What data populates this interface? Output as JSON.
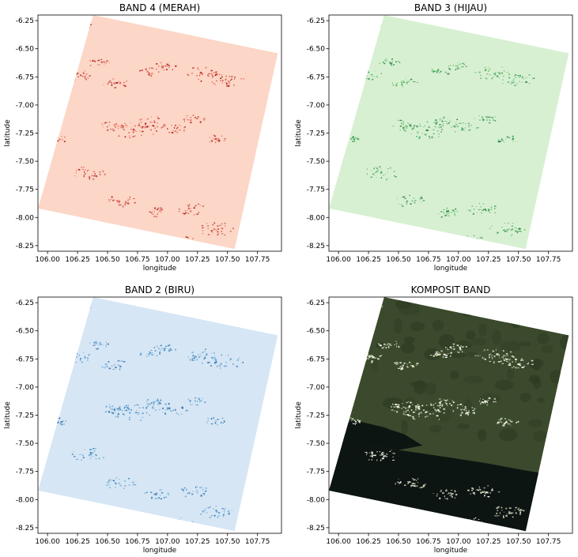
{
  "panels": [
    {
      "title": "BAND 4 (MERAH)",
      "xlabel": "longitude",
      "ylabel": "latitude",
      "colormap": "Reds",
      "base_color": "#fcd6c6",
      "speck_colors": [
        "#e9573f",
        "#c4241d",
        "#a50f15"
      ],
      "cloud_colors": []
    },
    {
      "title": "BAND 3 (HIJAU)",
      "xlabel": "longitude",
      "ylabel": "latitude",
      "colormap": "Greens",
      "base_color": "#d8f0d2",
      "speck_colors": [
        "#74c476",
        "#31a354",
        "#1e7a3a"
      ],
      "cloud_colors": []
    },
    {
      "title": "BAND 2 (BIRU)",
      "xlabel": "longitude",
      "ylabel": "latitude",
      "colormap": "Blues",
      "base_color": "#d6e6f5",
      "speck_colors": [
        "#6baed6",
        "#3182bd",
        "#1f5f9e"
      ],
      "cloud_colors": []
    },
    {
      "title": "KOMPOSIT BAND",
      "xlabel": "longitude",
      "ylabel": "latitude",
      "colormap": "composite",
      "land_color": "#3b4a2c",
      "land_dark_color": "#2c3a22",
      "sea_color": "#0d1512",
      "cloud_colors": [
        "#ffffff",
        "#f7f7d8",
        "#e8efd0"
      ]
    }
  ],
  "x_ticks": [
    106.0,
    106.25,
    106.5,
    106.75,
    107.0,
    107.25,
    107.5,
    107.75
  ],
  "y_ticks": [
    -6.25,
    -6.5,
    -6.75,
    -7.0,
    -7.25,
    -7.5,
    -7.75,
    -8.0,
    -8.25
  ],
  "x_tick_labels": [
    "106.00",
    "106.25",
    "106.50",
    "106.75",
    "107.00",
    "107.25",
    "107.50",
    "107.75"
  ],
  "y_tick_labels": [
    "-6.25",
    "-6.50",
    "-6.75",
    "-7.00",
    "-7.25",
    "-7.50",
    "-7.75",
    "-8.00",
    "-8.25"
  ],
  "x_range": [
    105.92,
    107.95
  ],
  "y_range": [
    -8.3,
    -6.2
  ],
  "scene_corners_deg": [
    [
      106.38,
      -6.2
    ],
    [
      107.92,
      -6.54
    ],
    [
      107.56,
      -8.28
    ],
    [
      105.92,
      -7.92
    ]
  ],
  "coastline_deg": [
    [
      106.2,
      -7.52
    ],
    [
      106.5,
      -7.56
    ],
    [
      106.95,
      -7.63
    ],
    [
      107.25,
      -7.68
    ],
    [
      107.55,
      -7.74
    ],
    [
      107.78,
      -7.78
    ]
  ],
  "cloud_regions_deg": [
    [
      106.25,
      -6.73,
      0.6
    ],
    [
      106.42,
      -6.62,
      0.5
    ],
    [
      106.55,
      -6.8,
      0.6
    ],
    [
      106.85,
      -6.7,
      0.5
    ],
    [
      106.98,
      -6.65,
      0.5
    ],
    [
      107.3,
      -6.72,
      0.9
    ],
    [
      107.48,
      -6.77,
      0.8
    ],
    [
      106.55,
      -7.18,
      0.7
    ],
    [
      106.72,
      -7.22,
      1.0
    ],
    [
      106.88,
      -7.15,
      0.7
    ],
    [
      107.05,
      -7.2,
      0.6
    ],
    [
      107.22,
      -7.12,
      0.5
    ],
    [
      107.4,
      -7.3,
      0.5
    ],
    [
      106.35,
      -7.6,
      0.8
    ],
    [
      106.6,
      -7.85,
      0.7
    ],
    [
      106.9,
      -7.95,
      0.6
    ],
    [
      107.2,
      -7.92,
      0.7
    ],
    [
      107.4,
      -8.1,
      0.8
    ],
    [
      107.1,
      -8.2,
      0.6
    ],
    [
      106.1,
      -7.3,
      0.4
    ],
    [
      106.25,
      -6.28,
      0.6
    ]
  ]
}
